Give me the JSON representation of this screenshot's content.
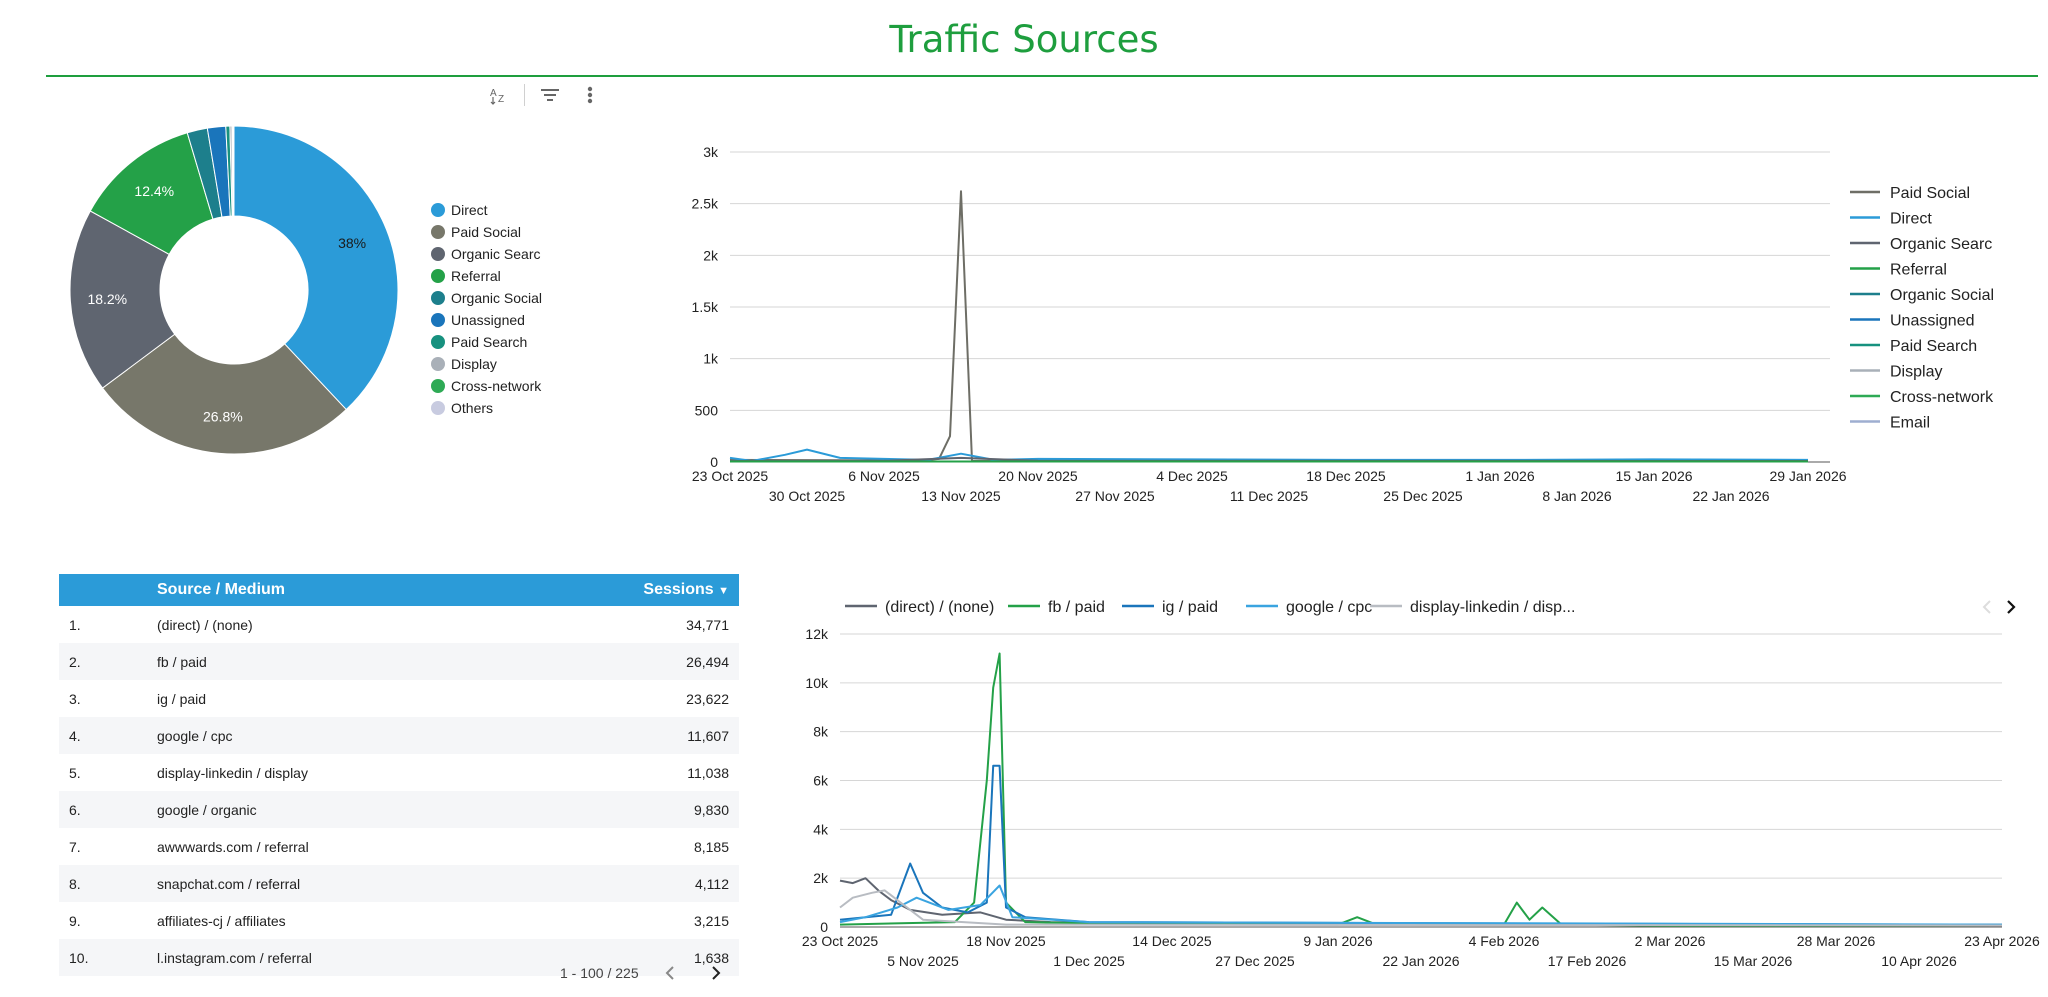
{
  "page": {
    "title": "Traffic Sources"
  },
  "toolbar": {
    "icons": [
      "sort-az-icon",
      "filter-icon",
      "more-vert-icon"
    ]
  },
  "colors": {
    "accent_green": "#1e9e3e",
    "header_blue": "#2b9bd8",
    "direct": "#2b9bd8",
    "paid_social": "#77776a",
    "organic_search": "#5f6570",
    "referral": "#24a148",
    "organic_social": "#1d7f8c",
    "unassigned": "#1a75bb",
    "paid_search": "#17917f",
    "display": "#a9b0b8",
    "cross_network": "#2eaa55",
    "others": "#c8cbe0",
    "email": "#9eaed0"
  },
  "pie": {
    "slices": [
      {
        "label": "Direct",
        "value": 38.0,
        "pct_label": "38%",
        "color": "#2b9bd8"
      },
      {
        "label": "Paid Social",
        "value": 26.8,
        "pct_label": "26.8%",
        "color": "#77776a"
      },
      {
        "label": "Organic Search",
        "value": 18.2,
        "pct_label": "18.2%",
        "color": "#5f6570"
      },
      {
        "label": "Referral",
        "value": 12.4,
        "pct_label": "12.4%",
        "color": "#24a148"
      },
      {
        "label": "Organic Social",
        "value": 2.0,
        "pct_label": "",
        "color": "#1d7f8c"
      },
      {
        "label": "Unassigned",
        "value": 1.8,
        "pct_label": "",
        "color": "#1a75bb"
      },
      {
        "label": "Paid Search",
        "value": 0.4,
        "pct_label": "",
        "color": "#17917f"
      },
      {
        "label": "Display",
        "value": 0.2,
        "pct_label": "",
        "color": "#a9b0b8"
      },
      {
        "label": "Cross-network",
        "value": 0.1,
        "pct_label": "",
        "color": "#2eaa55"
      },
      {
        "label": "Others",
        "value": 0.1,
        "pct_label": "",
        "color": "#c8cbe0"
      }
    ],
    "legend_labels": [
      "Direct",
      "Paid Social",
      "Organic Searc",
      "Referral",
      "Organic Social",
      "Unassigned",
      "Paid Search",
      "Display",
      "Cross-network",
      "Others"
    ]
  },
  "chart_data": [
    {
      "type": "line",
      "title": "",
      "y_ticks": [
        "0",
        "500",
        "1k",
        "1.5k",
        "2k",
        "2.5k",
        "3k"
      ],
      "ylim": [
        0,
        3000
      ],
      "x_ticks_row1": [
        "23 Oct 2025",
        "6 Nov 2025",
        "20 Nov 2025",
        "4 Dec 2025",
        "18 Dec 2025",
        "1 Jan 2026",
        "15 Jan 2026",
        "29 Jan 2026"
      ],
      "x_ticks_row2": [
        "30 Oct 2025",
        "13 Nov 2025",
        "27 Nov 2025",
        "11 Dec 2025",
        "25 Dec 2025",
        "8 Jan 2026",
        "22 Jan 2026"
      ],
      "xlim": [
        "23 Oct 2025",
        "31 Jan 2026"
      ],
      "legend_labels": [
        "Paid Social",
        "Direct",
        "Organic Searc",
        "Referral",
        "Organic Social",
        "Unassigned",
        "Paid Search",
        "Display",
        "Cross-network",
        "Email"
      ],
      "legend_position": "right",
      "grid": true,
      "series": [
        {
          "name": "Paid Social",
          "color": "#6e6e66",
          "x": [
            "23 Oct 2025",
            "6 Nov 2025",
            "10 Nov 2025",
            "11 Nov 2025",
            "12 Nov 2025",
            "13 Nov 2025",
            "14 Nov 2025",
            "20 Nov 2025",
            "29 Jan 2026"
          ],
          "y": [
            20,
            15,
            20,
            30,
            250,
            2620,
            10,
            15,
            10
          ]
        },
        {
          "name": "Direct",
          "color": "#2b9bd8",
          "x": [
            "23 Oct 2025",
            "25 Oct 2025",
            "28 Oct 2025",
            "30 Oct 2025",
            "2 Nov 2025",
            "6 Nov 2025",
            "10 Nov 2025",
            "13 Nov 2025",
            "16 Nov 2025",
            "20 Nov 2025",
            "4 Dec 2025",
            "18 Dec 2025",
            "1 Jan 2026",
            "15 Jan 2026",
            "29 Jan 2026"
          ],
          "y": [
            40,
            10,
            70,
            120,
            40,
            30,
            20,
            80,
            20,
            30,
            25,
            20,
            20,
            25,
            20
          ]
        },
        {
          "name": "Organic Searc",
          "color": "#5f6570",
          "x": [
            "23 Oct 2025",
            "6 Nov 2025",
            "13 Nov 2025",
            "20 Nov 2025",
            "29 Jan 2026"
          ],
          "y": [
            10,
            12,
            40,
            12,
            10
          ]
        },
        {
          "name": "Referral",
          "color": "#24a148",
          "x": [
            "23 Oct 2025",
            "29 Jan 2026"
          ],
          "y": [
            5,
            5
          ]
        }
      ]
    },
    {
      "type": "line",
      "title": "",
      "y_ticks": [
        "0",
        "2k",
        "4k",
        "6k",
        "8k",
        "10k",
        "12k"
      ],
      "ylim": [
        0,
        12000
      ],
      "x_ticks_row1": [
        "23 Oct 2025",
        "18 Nov 2025",
        "14 Dec 2025",
        "9 Jan 2026",
        "4 Feb 2026",
        "2 Mar 2026",
        "28 Mar 2026",
        "23 Apr 2026"
      ],
      "x_ticks_row2": [
        "5 Nov 2025",
        "1 Dec 2025",
        "27 Dec 2025",
        "22 Jan 2026",
        "17 Feb 2026",
        "15 Mar 2026",
        "10 Apr 2026"
      ],
      "xlim": [
        "23 Oct 2025",
        "23 Apr 2026"
      ],
      "legend_labels": [
        "(direct) / (none)",
        "fb / paid",
        "ig / paid",
        "google / cpc",
        "display-linkedin / disp..."
      ],
      "legend_position": "top",
      "grid": true,
      "series": [
        {
          "name": "(direct) / (none)",
          "color": "#5f6570",
          "x": [
            "23 Oct 2025",
            "25 Oct 2025",
            "27 Oct 2025",
            "29 Oct 2025",
            "31 Oct 2025",
            "3 Nov 2025",
            "8 Nov 2025",
            "14 Nov 2025",
            "18 Nov 2025",
            "25 Nov 2025",
            "14 Dec 2025",
            "23 Apr 2026"
          ],
          "y": [
            1900,
            1800,
            2000,
            1500,
            1100,
            700,
            500,
            600,
            300,
            200,
            150,
            100
          ]
        },
        {
          "name": "fb / paid",
          "color": "#24a148",
          "x": [
            "23 Oct 2025",
            "10 Nov 2025",
            "13 Nov 2025",
            "15 Nov 2025",
            "16 Nov 2025",
            "17 Nov 2025",
            "18 Nov 2025",
            "21 Nov 2025",
            "1 Dec 2025",
            "9 Jan 2026",
            "12 Jan 2026",
            "15 Jan 2026",
            "4 Feb 2026",
            "6 Feb 2026",
            "8 Feb 2026",
            "10 Feb 2026",
            "13 Feb 2026",
            "2 Mar 2026",
            "23 Apr 2026"
          ],
          "y": [
            100,
            200,
            1000,
            6000,
            9800,
            11200,
            1000,
            200,
            150,
            100,
            400,
            100,
            100,
            1000,
            300,
            800,
            100,
            50,
            60
          ]
        },
        {
          "name": "ig / paid",
          "color": "#1a75bb",
          "x": [
            "23 Oct 2025",
            "31 Oct 2025",
            "3 Nov 2025",
            "5 Nov 2025",
            "8 Nov 2025",
            "12 Nov 2025",
            "15 Nov 2025",
            "16 Nov 2025",
            "17 Nov 2025",
            "18 Nov 2025",
            "21 Nov 2025",
            "1 Dec 2025",
            "23 Apr 2026"
          ],
          "y": [
            300,
            500,
            2600,
            1400,
            800,
            600,
            1000,
            6600,
            6600,
            800,
            400,
            200,
            80
          ]
        },
        {
          "name": "google / cpc",
          "color": "#3aa4e0",
          "x": [
            "23 Oct 2025",
            "27 Oct 2025",
            "1 Nov 2025",
            "4 Nov 2025",
            "9 Nov 2025",
            "14 Nov 2025",
            "17 Nov 2025",
            "19 Nov 2025",
            "1 Dec 2025",
            "23 Apr 2026"
          ],
          "y": [
            200,
            400,
            800,
            1200,
            700,
            900,
            1700,
            400,
            200,
            100
          ]
        },
        {
          "name": "display-linkedin / disp...",
          "color": "#b8bcc2",
          "x": [
            "23 Oct 2025",
            "25 Oct 2025",
            "28 Oct 2025",
            "30 Oct 2025",
            "2 Nov 2025",
            "5 Nov 2025",
            "18 Nov 2025",
            "23 Apr 2026"
          ],
          "y": [
            800,
            1200,
            1400,
            1500,
            900,
            300,
            100,
            60
          ]
        }
      ]
    }
  ],
  "table": {
    "headers": {
      "source": "Source / Medium",
      "sessions": "Sessions"
    },
    "rows": [
      {
        "idx": "1.",
        "source": "(direct) / (none)",
        "sessions": "34,771"
      },
      {
        "idx": "2.",
        "source": "fb / paid",
        "sessions": "26,494"
      },
      {
        "idx": "3.",
        "source": "ig / paid",
        "sessions": "23,622"
      },
      {
        "idx": "4.",
        "source": "google / cpc",
        "sessions": "11,607"
      },
      {
        "idx": "5.",
        "source": "display-linkedin / display",
        "sessions": "11,038"
      },
      {
        "idx": "6.",
        "source": "google / organic",
        "sessions": "9,830"
      },
      {
        "idx": "7.",
        "source": "awwwards.com / referral",
        "sessions": "8,185"
      },
      {
        "idx": "8.",
        "source": "snapchat.com / referral",
        "sessions": "4,112"
      },
      {
        "idx": "9.",
        "source": "affiliates-cj / affiliates",
        "sessions": "3,215"
      },
      {
        "idx": "10.",
        "source": "l.instagram.com / referral",
        "sessions": "1,638"
      }
    ],
    "pagination": "1 - 100 / 225"
  }
}
